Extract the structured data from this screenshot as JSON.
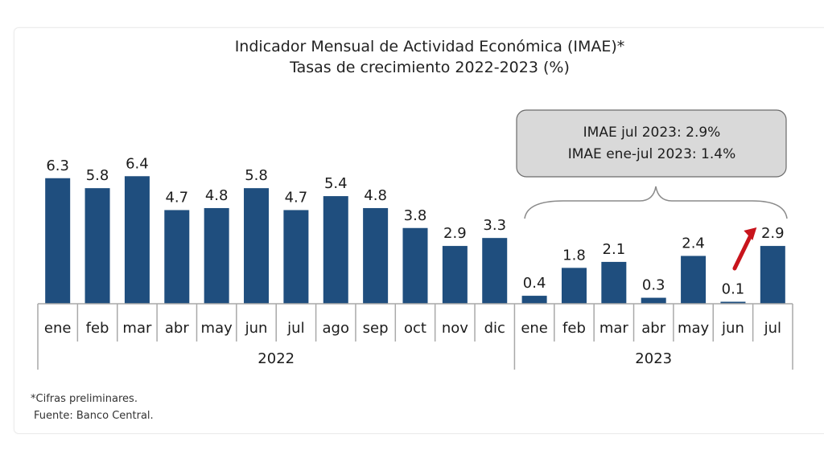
{
  "chart_data": {
    "type": "bar",
    "title": "Indicador Mensual de Actividad Económica (IMAE)*",
    "subtitle": "Tasas de crecimiento 2022-2023 (%)",
    "xlabel": "",
    "ylabel": "",
    "ylim": [
      0,
      7
    ],
    "grid": false,
    "categories": [
      "ene",
      "feb",
      "mar",
      "abr",
      "may",
      "jun",
      "jul",
      "ago",
      "sep",
      "oct",
      "nov",
      "dic",
      "ene",
      "feb",
      "mar",
      "abr",
      "may",
      "jun",
      "jul"
    ],
    "years": [
      {
        "label": "2022",
        "count": 12
      },
      {
        "label": "2023",
        "count": 7
      }
    ],
    "values": [
      6.3,
      5.8,
      6.4,
      4.7,
      4.8,
      5.8,
      4.7,
      5.4,
      4.8,
      3.8,
      2.9,
      3.3,
      0.4,
      1.8,
      2.1,
      0.3,
      2.4,
      0.1,
      2.9
    ],
    "value_labels": [
      "6.3",
      "5.8",
      "6.4",
      "4.7",
      "4.8",
      "5.8",
      "4.7",
      "5.4",
      "4.8",
      "3.8",
      "2.9",
      "3.3",
      "0.4",
      "1.8",
      "2.1",
      "0.3",
      "2.4",
      "0.1",
      "2.9"
    ],
    "bar_color": "#1f4e7e",
    "callout": {
      "lines": [
        "IMAE jul 2023: 2.9%",
        "IMAE ene-jul 2023: 1.4%"
      ],
      "applies_to_year": "2023",
      "background": "#d9d9d9"
    },
    "arrow": {
      "from_category_index": 17,
      "to_category_index": 18,
      "color": "#c8141c",
      "direction": "up"
    },
    "footnotes": [
      "*Cifras preliminares.",
      "Fuente: Banco Central."
    ]
  }
}
